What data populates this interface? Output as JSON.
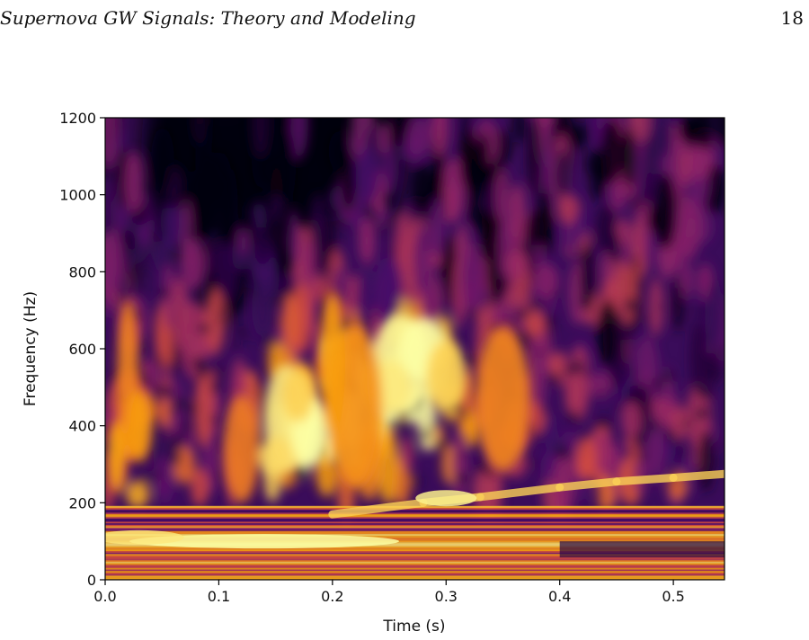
{
  "page": {
    "running_head": "Supernova GW Signals: Theory and Modeling",
    "page_number": "18"
  },
  "chart_data": {
    "type": "heatmap",
    "title": "",
    "xlabel": "Time (s)",
    "ylabel": "Frequency (Hz)",
    "xlim": [
      0.0,
      0.545
    ],
    "ylim": [
      0,
      1200
    ],
    "xticks": [
      "0.0",
      "0.1",
      "0.2",
      "0.3",
      "0.4",
      "0.5"
    ],
    "yticks": [
      "0",
      "200",
      "400",
      "600",
      "800",
      "1000",
      "1200"
    ],
    "colormap": "inferno",
    "colormap_stops": [
      "#000004",
      "#420a68",
      "#932667",
      "#dd513a",
      "#fca50a",
      "#fcffa4"
    ],
    "grid": false,
    "legend": "none",
    "features": [
      {
        "x": 0.08,
        "y": 100,
        "intensity": 0.95,
        "note": "strong low-frequency band ~100 Hz"
      },
      {
        "x": 0.17,
        "y": 420,
        "intensity": 1.0,
        "note": "bright burst 300-550 Hz"
      },
      {
        "x": 0.27,
        "y": 550,
        "intensity": 1.0,
        "note": "bright burst 450-650 Hz"
      },
      {
        "x": 0.3,
        "y": 210,
        "intensity": 0.9,
        "note": "rising g-mode track"
      },
      {
        "x": 0.5,
        "y": 265,
        "intensity": 0.85,
        "note": "rising g-mode track"
      },
      {
        "x": 0.1,
        "y": 1050,
        "intensity": 0.0,
        "note": "quiet region high frequency"
      }
    ]
  }
}
